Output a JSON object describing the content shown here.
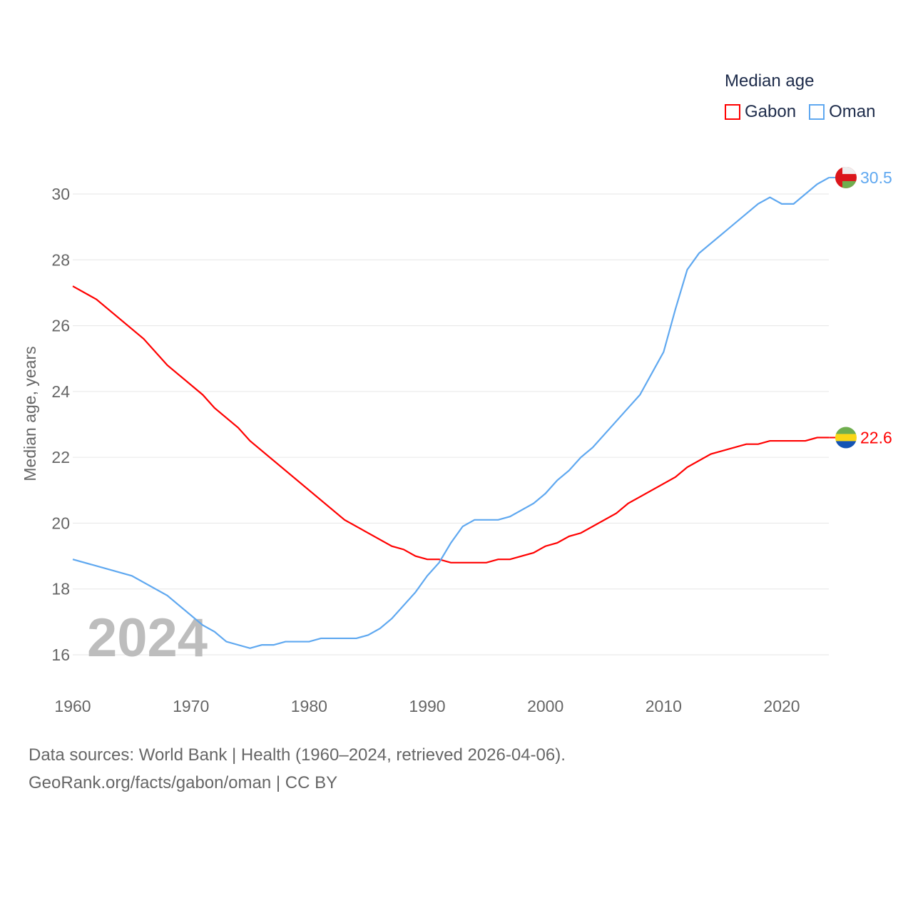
{
  "chart_data": {
    "type": "line",
    "title": "Median age",
    "ylabel": "Median age, years",
    "xlabel": "",
    "xlim": [
      1960,
      2024
    ],
    "ylim": [
      15.2,
      31.5
    ],
    "xticks": [
      1960,
      1970,
      1980,
      1990,
      2000,
      2010,
      2020
    ],
    "yticks": [
      16,
      18,
      20,
      22,
      24,
      26,
      28,
      30
    ],
    "grid": true,
    "legend_position": "top-right",
    "year_label": "2024",
    "series": [
      {
        "name": "Gabon",
        "color": "#ff0000",
        "end_label": "22.6",
        "x": [
          1960,
          1962,
          1966,
          1968,
          1971,
          1972,
          1974,
          1975,
          1983,
          1987,
          1988,
          1989,
          1990,
          1991,
          1992,
          1995,
          1996,
          1997,
          1999,
          2000,
          2001,
          2002,
          2003,
          2006,
          2007,
          2011,
          2012,
          2014,
          2017,
          2018,
          2019,
          2022,
          2023,
          2024
        ],
        "y": [
          27.2,
          26.8,
          25.6,
          24.8,
          23.9,
          23.5,
          22.9,
          22.5,
          20.1,
          19.3,
          19.2,
          19.0,
          18.9,
          18.9,
          18.8,
          18.8,
          18.9,
          18.9,
          19.1,
          19.3,
          19.4,
          19.6,
          19.7,
          20.3,
          20.6,
          21.4,
          21.7,
          22.1,
          22.4,
          22.4,
          22.5,
          22.5,
          22.6,
          22.6
        ]
      },
      {
        "name": "Oman",
        "color": "#5fa8f0",
        "end_label": "30.5",
        "x": [
          1960,
          1965,
          1968,
          1971,
          1972,
          1973,
          1975,
          1976,
          1977,
          1978,
          1980,
          1981,
          1984,
          1985,
          1986,
          1987,
          1989,
          1990,
          1991,
          1992,
          1993,
          1994,
          1996,
          1997,
          1999,
          2000,
          2001,
          2002,
          2003,
          2004,
          2007,
          2008,
          2010,
          2011,
          2012,
          2013,
          2018,
          2019,
          2020,
          2021,
          2023,
          2024
        ],
        "y": [
          18.9,
          18.4,
          17.8,
          16.9,
          16.7,
          16.4,
          16.2,
          16.3,
          16.3,
          16.4,
          16.4,
          16.5,
          16.5,
          16.6,
          16.8,
          17.1,
          17.9,
          18.4,
          18.8,
          19.4,
          19.9,
          20.1,
          20.1,
          20.2,
          20.6,
          20.9,
          21.3,
          21.6,
          22.0,
          22.3,
          23.5,
          23.9,
          25.2,
          26.5,
          27.7,
          28.2,
          29.7,
          29.9,
          29.7,
          29.7,
          30.3,
          30.5
        ]
      }
    ]
  },
  "source": {
    "line1": "Data sources: World Bank | Health (1960–2024, retrieved 2026-04-06).",
    "line2": "GeoRank.org/facts/gabon/oman | CC BY"
  }
}
